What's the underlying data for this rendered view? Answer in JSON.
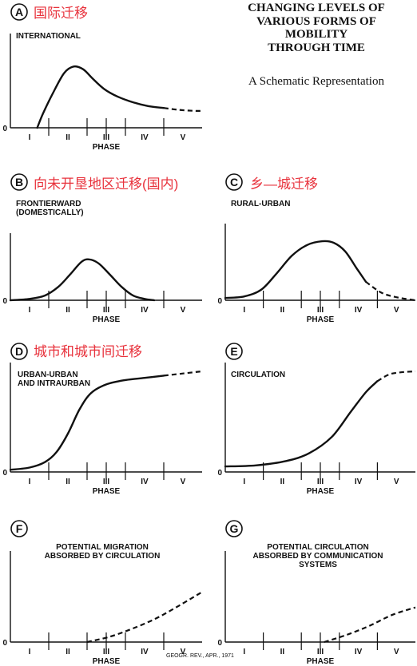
{
  "figure": {
    "title": [
      "CHANGING LEVELS OF",
      "VARIOUS FORMS OF",
      "MOBILITY",
      "THROUGH TIME"
    ],
    "subtitle": "A Schematic Representation",
    "credit": "GEOGR. REV., APR., 1971",
    "zero_label": "0",
    "xlabel": "PHASE",
    "phases": [
      "I",
      "II",
      "III",
      "IV",
      "V"
    ],
    "annotation_color": "#e8323c"
  },
  "chart_data": [
    {
      "letter": "A",
      "type": "line",
      "label": [
        "INTERNATIONAL"
      ],
      "annotation": "国际迁移",
      "xlabel": "PHASE",
      "xlim": [
        0,
        5
      ],
      "ylim": [
        0,
        1
      ],
      "solid": [
        [
          0.7,
          0
        ],
        [
          0.85,
          0.15
        ],
        [
          1.1,
          0.36
        ],
        [
          1.4,
          0.58
        ],
        [
          1.65,
          0.65
        ],
        [
          1.9,
          0.62
        ],
        [
          2.15,
          0.52
        ],
        [
          2.45,
          0.41
        ],
        [
          2.8,
          0.33
        ],
        [
          3.2,
          0.27
        ],
        [
          3.6,
          0.23
        ],
        [
          4.0,
          0.21
        ]
      ],
      "dashed": [
        [
          4.0,
          0.21
        ],
        [
          4.4,
          0.19
        ],
        [
          4.8,
          0.18
        ],
        [
          5.0,
          0.18
        ]
      ]
    },
    {
      "letter": "B",
      "type": "line",
      "label": [
        "FRONTIERWARD",
        "(DOMESTICALLY)"
      ],
      "annotation": "向未开垦地区迁移(国内)",
      "xlabel": "PHASE",
      "xlim": [
        0,
        5
      ],
      "ylim": [
        0,
        1
      ],
      "solid": [
        [
          0,
          0.0
        ],
        [
          0.5,
          0.02
        ],
        [
          0.9,
          0.07
        ],
        [
          1.25,
          0.2
        ],
        [
          1.55,
          0.38
        ],
        [
          1.85,
          0.57
        ],
        [
          2.05,
          0.61
        ],
        [
          2.3,
          0.55
        ],
        [
          2.6,
          0.38
        ],
        [
          2.9,
          0.2
        ],
        [
          3.2,
          0.07
        ],
        [
          3.5,
          0.02
        ],
        [
          3.75,
          0.0
        ]
      ],
      "dashed": []
    },
    {
      "letter": "C",
      "type": "line",
      "label": [
        "RURAL-URBAN"
      ],
      "annotation": "乡—城迁移",
      "xlabel": "PHASE",
      "xlim": [
        0,
        5
      ],
      "ylim": [
        0,
        1
      ],
      "solid": [
        [
          0,
          0.03
        ],
        [
          0.5,
          0.05
        ],
        [
          0.95,
          0.14
        ],
        [
          1.35,
          0.35
        ],
        [
          1.75,
          0.58
        ],
        [
          2.15,
          0.72
        ],
        [
          2.55,
          0.77
        ],
        [
          2.85,
          0.75
        ],
        [
          3.15,
          0.64
        ],
        [
          3.45,
          0.42
        ],
        [
          3.7,
          0.24
        ]
      ],
      "dashed": [
        [
          3.7,
          0.24
        ],
        [
          4.1,
          0.1
        ],
        [
          4.5,
          0.04
        ],
        [
          5.0,
          0.0
        ]
      ]
    },
    {
      "letter": "D",
      "type": "line",
      "label": [
        "URBAN-URBAN",
        "AND INTRAURBAN"
      ],
      "annotation": "城市和城市间迁移",
      "xlabel": "PHASE",
      "xlim": [
        0,
        5
      ],
      "ylim": [
        0,
        1
      ],
      "solid": [
        [
          0,
          0.02
        ],
        [
          0.5,
          0.04
        ],
        [
          0.9,
          0.09
        ],
        [
          1.2,
          0.18
        ],
        [
          1.5,
          0.35
        ],
        [
          1.8,
          0.57
        ],
        [
          2.1,
          0.72
        ],
        [
          2.5,
          0.8
        ],
        [
          3.0,
          0.84
        ],
        [
          3.5,
          0.86
        ],
        [
          4.0,
          0.88
        ]
      ],
      "dashed": [
        [
          4.0,
          0.88
        ],
        [
          4.5,
          0.9
        ],
        [
          5.0,
          0.92
        ]
      ]
    },
    {
      "letter": "E",
      "type": "line",
      "label": [
        "CIRCULATION"
      ],
      "annotation": "",
      "xlabel": "PHASE",
      "xlim": [
        0,
        5
      ],
      "ylim": [
        0,
        1
      ],
      "solid": [
        [
          0,
          0.05
        ],
        [
          0.8,
          0.06
        ],
        [
          1.6,
          0.1
        ],
        [
          2.2,
          0.17
        ],
        [
          2.8,
          0.32
        ],
        [
          3.3,
          0.55
        ],
        [
          3.7,
          0.73
        ],
        [
          4.0,
          0.83
        ]
      ],
      "dashed": [
        [
          4.0,
          0.83
        ],
        [
          4.3,
          0.89
        ],
        [
          4.6,
          0.91
        ],
        [
          5.0,
          0.92
        ]
      ]
    },
    {
      "letter": "F",
      "type": "line",
      "label": [
        "POTENTIAL MIGRATION",
        "ABSORBED BY CIRCULATION"
      ],
      "annotation": "",
      "xlabel": "PHASE",
      "xlim": [
        0,
        5
      ],
      "ylim": [
        0,
        1
      ],
      "solid": [],
      "dashed": [
        [
          2.0,
          0.0
        ],
        [
          2.6,
          0.06
        ],
        [
          3.2,
          0.15
        ],
        [
          3.8,
          0.26
        ],
        [
          4.4,
          0.4
        ],
        [
          5.0,
          0.55
        ]
      ]
    },
    {
      "letter": "G",
      "type": "line",
      "label": [
        "POTENTIAL CIRCULATION",
        "ABSORBED BY COMMUNICATION",
        "SYSTEMS"
      ],
      "annotation": "",
      "xlabel": "PHASE",
      "xlim": [
        0,
        5
      ],
      "ylim": [
        0,
        1
      ],
      "solid": [],
      "dashed": [
        [
          2.6,
          0.0
        ],
        [
          3.2,
          0.08
        ],
        [
          3.8,
          0.18
        ],
        [
          4.4,
          0.3
        ],
        [
          5.0,
          0.38
        ]
      ]
    }
  ]
}
